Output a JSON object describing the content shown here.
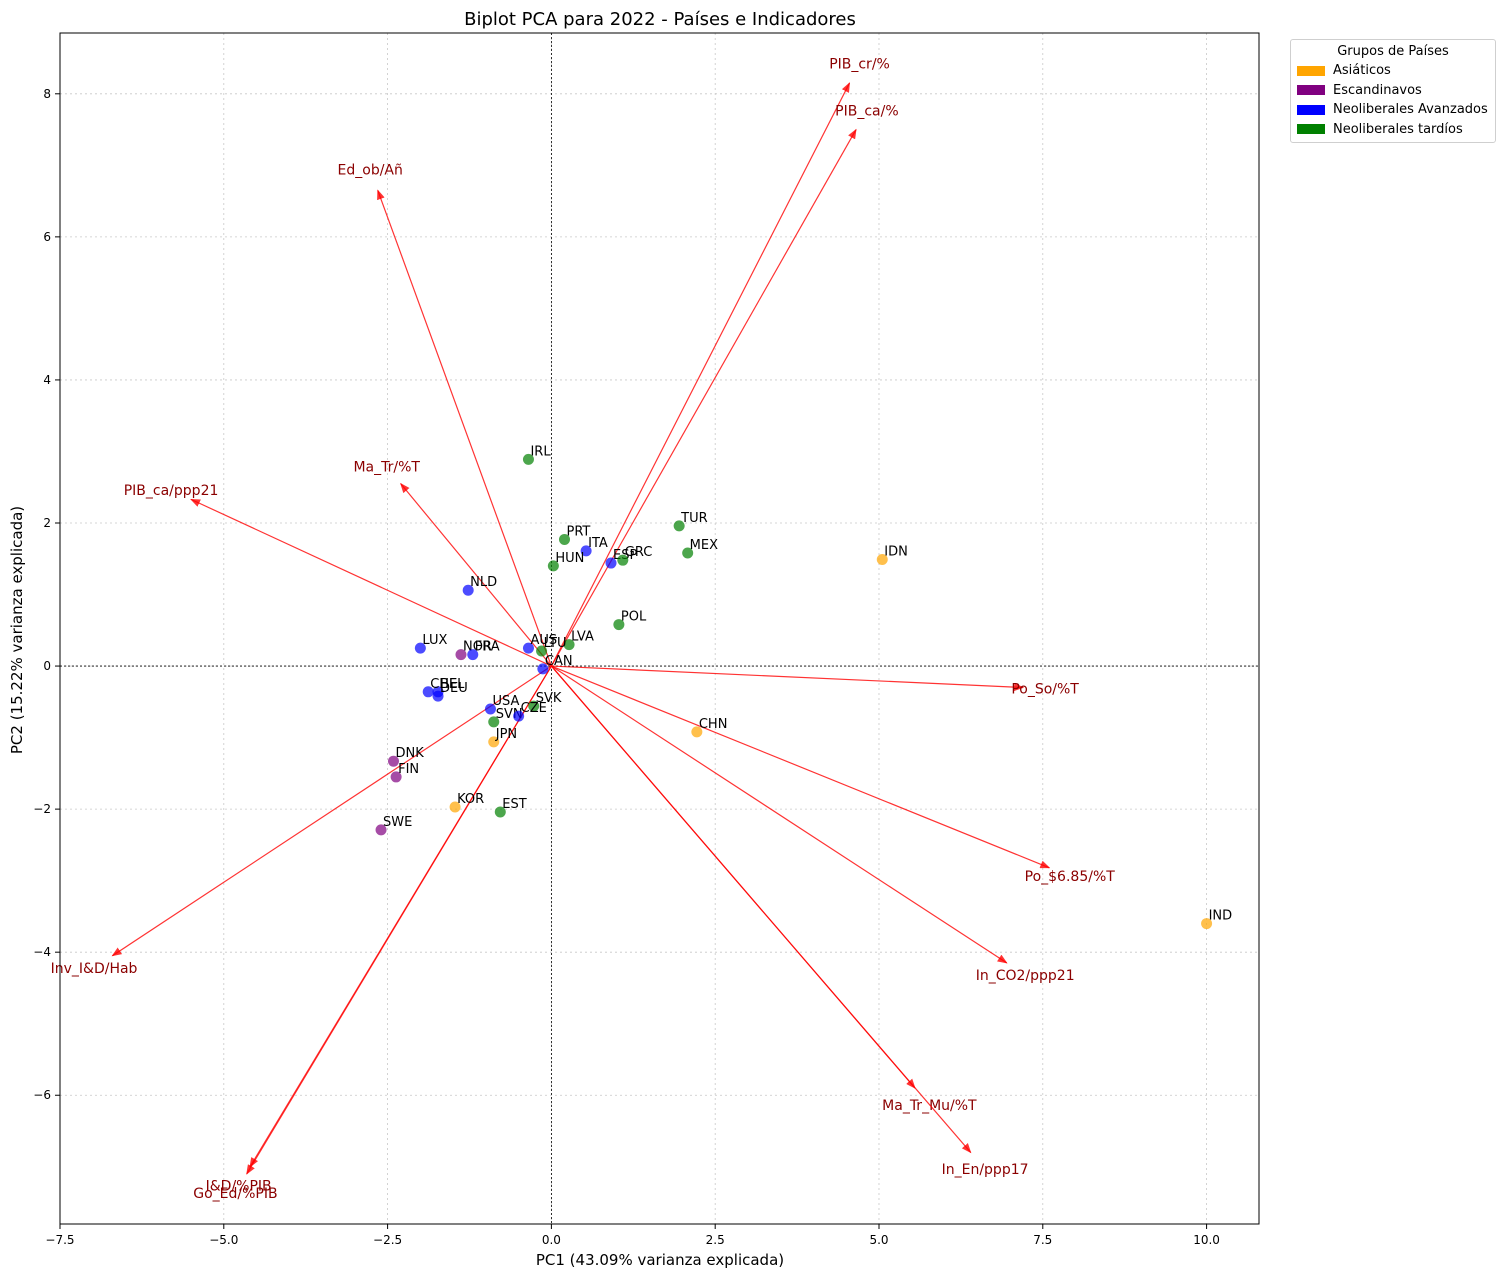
{
  "chart_data": {
    "type": "scatter",
    "title": "Biplot PCA para 2022 - Países e Indicadores",
    "xlabel": "PC1 (43.09% varianza explicada)",
    "ylabel": "PC2 (15.22% varianza explicada)",
    "xlim": [
      -7.5,
      10.8
    ],
    "ylim": [
      -7.8,
      8.85
    ],
    "xticks": [
      -7.5,
      -5.0,
      -2.5,
      0.0,
      2.5,
      5.0,
      7.5,
      10.0
    ],
    "xtick_labels": [
      "−7.5",
      "−5.0",
      "−2.5",
      "0.0",
      "2.5",
      "5.0",
      "7.5",
      "10.0"
    ],
    "yticks": [
      -6,
      -4,
      -2,
      0,
      2,
      4,
      6,
      8
    ],
    "ytick_labels": [
      "−6",
      "−4",
      "−2",
      "0",
      "2",
      "4",
      "6",
      "8"
    ],
    "grid": true,
    "legend": {
      "title": "Grupos de Países",
      "placement": "outside-top-right",
      "items": [
        {
          "label": "Asiáticos",
          "color": "#ffa500"
        },
        {
          "label": "Escandinavos",
          "color": "#800080"
        },
        {
          "label": "Neoliberales Avanzados",
          "color": "#0000ff"
        },
        {
          "label": "Neoliberales tardíos",
          "color": "#008000"
        }
      ]
    },
    "group_colors": {
      "asia": "#ffa500",
      "scand": "#800080",
      "neoadv": "#0000ff",
      "neotard": "#008000"
    },
    "points": [
      {
        "label": "IRL",
        "x": -0.35,
        "y": 2.89,
        "group": "neotard"
      },
      {
        "label": "PRT",
        "x": 0.2,
        "y": 1.77,
        "group": "neotard"
      },
      {
        "label": "TUR",
        "x": 1.95,
        "y": 1.96,
        "group": "neotard"
      },
      {
        "label": "ITA",
        "x": 0.53,
        "y": 1.61,
        "group": "neoadv"
      },
      {
        "label": "ESP",
        "x": 0.91,
        "y": 1.44,
        "group": "neoadv"
      },
      {
        "label": "GRC",
        "x": 1.09,
        "y": 1.48,
        "group": "neotard"
      },
      {
        "label": "MEX",
        "x": 2.08,
        "y": 1.58,
        "group": "neotard"
      },
      {
        "label": "IDN",
        "x": 5.05,
        "y": 1.49,
        "group": "asia"
      },
      {
        "label": "HUN",
        "x": 0.03,
        "y": 1.4,
        "group": "neotard"
      },
      {
        "label": "NLD",
        "x": -1.27,
        "y": 1.06,
        "group": "neoadv"
      },
      {
        "label": "POL",
        "x": 1.03,
        "y": 0.58,
        "group": "neotard"
      },
      {
        "label": "LVA",
        "x": 0.27,
        "y": 0.3,
        "group": "neotard"
      },
      {
        "label": "AUS",
        "x": -0.35,
        "y": 0.25,
        "group": "neoadv"
      },
      {
        "label": "LTU",
        "x": -0.15,
        "y": 0.21,
        "group": "neotard"
      },
      {
        "label": "CAN",
        "x": -0.13,
        "y": -0.04,
        "group": "neoadv"
      },
      {
        "label": "LUX",
        "x": -2.0,
        "y": 0.25,
        "group": "neoadv"
      },
      {
        "label": "NOR",
        "x": -1.38,
        "y": 0.16,
        "group": "scand"
      },
      {
        "label": "FRA",
        "x": -1.2,
        "y": 0.16,
        "group": "neoadv"
      },
      {
        "label": "BEL",
        "x": -1.73,
        "y": -0.36,
        "group": "neoadv"
      },
      {
        "label": "CHE",
        "x": -1.88,
        "y": -0.36,
        "group": "neoadv"
      },
      {
        "label": "DEU",
        "x": -1.73,
        "y": -0.42,
        "group": "neoadv"
      },
      {
        "label": "SVK",
        "x": -0.27,
        "y": -0.56,
        "group": "neotard"
      },
      {
        "label": "USA",
        "x": -0.93,
        "y": -0.6,
        "group": "neoadv"
      },
      {
        "label": "SVN",
        "x": -0.88,
        "y": -0.78,
        "group": "neotard"
      },
      {
        "label": "CZE",
        "x": -0.5,
        "y": -0.7,
        "group": "neoadv"
      },
      {
        "label": "CHN",
        "x": 2.22,
        "y": -0.92,
        "group": "asia"
      },
      {
        "label": "JPN",
        "x": -0.88,
        "y": -1.06,
        "group": "asia"
      },
      {
        "label": "DNK",
        "x": -2.41,
        "y": -1.33,
        "group": "scand"
      },
      {
        "label": "FIN",
        "x": -2.37,
        "y": -1.55,
        "group": "scand"
      },
      {
        "label": "KOR",
        "x": -1.47,
        "y": -1.97,
        "group": "asia"
      },
      {
        "label": "EST",
        "x": -0.78,
        "y": -2.04,
        "group": "neotard"
      },
      {
        "label": "SWE",
        "x": -2.6,
        "y": -2.29,
        "group": "scand"
      },
      {
        "label": "IND",
        "x": 10.0,
        "y": -3.6,
        "group": "asia"
      }
    ],
    "loadings": [
      {
        "label": "PIB_cr/%",
        "x": 4.55,
        "y": 8.15
      },
      {
        "label": "PIB_ca/%",
        "x": 4.65,
        "y": 7.5
      },
      {
        "label": "Ed_ob/Añ",
        "x": -2.65,
        "y": 6.65
      },
      {
        "label": "Ma_Tr/%T",
        "x": -2.3,
        "y": 2.55
      },
      {
        "label": "PIB_ca/ppp21",
        "x": -5.5,
        "y": 2.33
      },
      {
        "label": "Po_So/%T",
        "x": 7.2,
        "y": -0.3
      },
      {
        "label": "Po_$6.85/%T",
        "x": 7.6,
        "y": -2.82
      },
      {
        "label": "In_CO2/ppp21",
        "x": 6.95,
        "y": -4.15
      },
      {
        "label": "Inv_I&D/Hab",
        "x": -6.7,
        "y": -4.05
      },
      {
        "label": "Ma_Tr_Mu/%T",
        "x": 5.55,
        "y": -5.9
      },
      {
        "label": "In_En/ppp17",
        "x": 6.4,
        "y": -6.8
      },
      {
        "label": "I&D/%PIB",
        "x": -4.6,
        "y": -7.0
      },
      {
        "label": "Go_Ed/%PIB",
        "x": -4.65,
        "y": -7.1
      }
    ]
  }
}
